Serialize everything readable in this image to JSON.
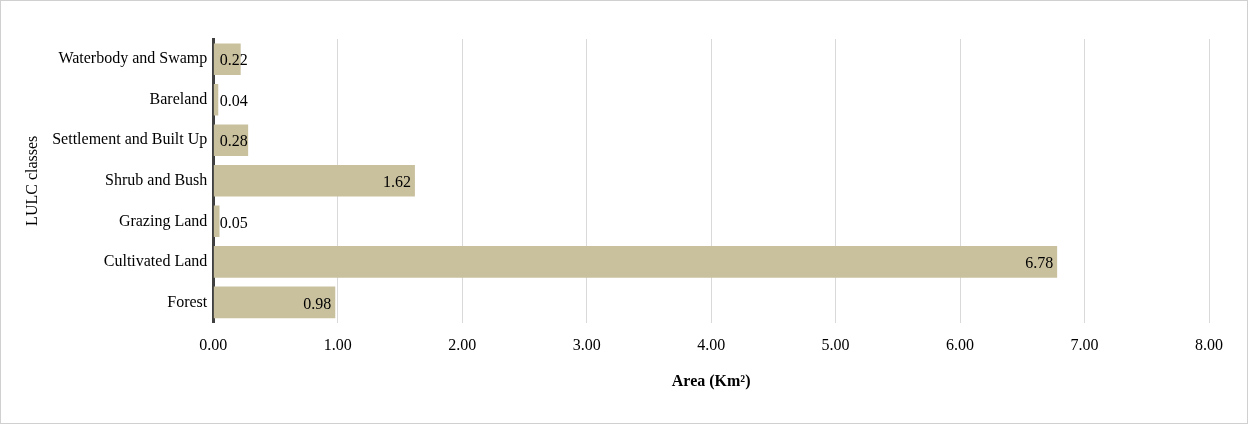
{
  "chart_data": {
    "type": "bar",
    "orientation": "horizontal",
    "xlabel": "Area (Km²)",
    "ylabel": "LULC classes",
    "categories": [
      "Waterbody and Swamp",
      "Bareland",
      "Settlement and Built Up",
      "Shrub and Bush",
      "Grazing Land",
      "Cultivated Land",
      "Forest"
    ],
    "values": [
      0.22,
      0.04,
      0.28,
      1.62,
      0.05,
      6.78,
      0.98
    ],
    "color": "#c9c09e",
    "xlim": [
      0,
      8
    ],
    "xticks": [
      {
        "value": 0,
        "label": "0.00"
      },
      {
        "value": 1,
        "label": "1.00"
      },
      {
        "value": 2,
        "label": "2.00"
      },
      {
        "value": 3,
        "label": "3.00"
      },
      {
        "value": 4,
        "label": "4.00"
      },
      {
        "value": 5,
        "label": "5.00"
      },
      {
        "value": 6,
        "label": "6.00"
      },
      {
        "value": 7,
        "label": "7.00"
      },
      {
        "value": 8,
        "label": "8.00"
      }
    ],
    "grid": "x",
    "data_labels": true,
    "legend": false
  }
}
